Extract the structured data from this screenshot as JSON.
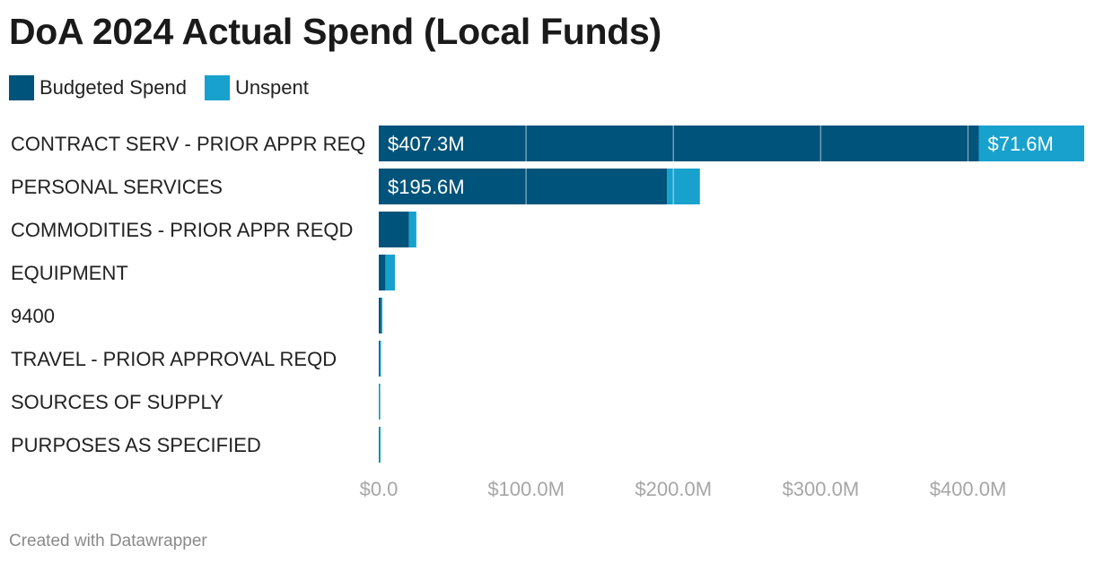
{
  "title": "DoA 2024 Actual Spend (Local Funds)",
  "footer": "Created with Datawrapper",
  "colors": {
    "budgeted": "#00537a",
    "unspent": "#18a1cd",
    "gridline": "#ffffff"
  },
  "legend": [
    {
      "label": "Budgeted Spend",
      "color": "#00537a"
    },
    {
      "label": "Unspent",
      "color": "#18a1cd"
    }
  ],
  "chart_data": {
    "type": "bar",
    "orientation": "horizontal",
    "stacked": true,
    "title": "DoA 2024 Actual Spend (Local Funds)",
    "categories": [
      "CONTRACT SERV - PRIOR APPR REQ",
      "PERSONAL SERVICES",
      "COMMODITIES - PRIOR APPR REQD",
      "EQUIPMENT",
      "9400",
      "TRAVEL - PRIOR APPROVAL REQD",
      "SOURCES OF SUPPLY",
      "PURPOSES AS SPECIFIED"
    ],
    "series": [
      {
        "name": "Budgeted Spend",
        "color": "#00537a",
        "values": [
          407.3,
          195.6,
          20.5,
          4.5,
          1.5,
          0.6,
          0.1,
          0.3
        ],
        "labels": [
          "$407.3M",
          "$195.6M",
          "",
          "",
          "",
          "",
          "",
          ""
        ]
      },
      {
        "name": "Unspent",
        "color": "#18a1cd",
        "values": [
          71.6,
          22.4,
          5.0,
          6.5,
          0.7,
          0.2,
          0.1,
          0.4
        ],
        "labels": [
          "$71.6M",
          "",
          "",
          "",
          "",
          "",
          "",
          ""
        ]
      }
    ],
    "xticks": [
      0,
      100,
      200,
      300,
      400
    ],
    "xtick_labels": [
      "$0.0",
      "$100.0M",
      "$200.0M",
      "$300.0M",
      "$400.0M"
    ],
    "xlim": [
      0,
      478.9
    ],
    "units": "millions USD",
    "grid": true,
    "legend_position": "top-left"
  }
}
